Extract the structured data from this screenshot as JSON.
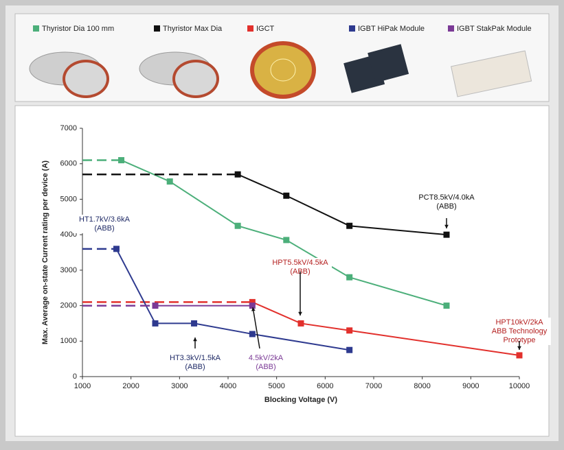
{
  "chart_data": {
    "type": "line",
    "x_label": "Blocking Voltage (V)",
    "y_label": "Max. Average on-state Current rating per device (A)",
    "xlim": [
      1000,
      10000
    ],
    "xticks": [
      1000,
      2000,
      3000,
      4000,
      5000,
      6000,
      7000,
      8000,
      9000,
      10000
    ],
    "ylim": [
      0,
      7000
    ],
    "yticks": [
      0,
      1000,
      2000,
      3000,
      4000,
      5000,
      6000,
      7000
    ],
    "grid": false,
    "legend": "top",
    "dashed_lead": true,
    "series": [
      {
        "name": "Thyristor Dia 100 mm",
        "color": "#4caf7a",
        "x": [
          1800,
          2800,
          4200,
          5200,
          6500,
          8500
        ],
        "values": [
          6100,
          5500,
          4250,
          3850,
          2800,
          2000
        ]
      },
      {
        "name": "Thyristor Max Dia",
        "color": "#111111",
        "x": [
          4200,
          5200,
          6500,
          8500
        ],
        "values": [
          5700,
          5100,
          4250,
          4000
        ]
      },
      {
        "name": "IGCT",
        "color": "#e2302c",
        "x": [
          4500,
          5500,
          6500,
          10000
        ],
        "values": [
          2100,
          1500,
          1300,
          600
        ]
      },
      {
        "name": "IGBT HiPak Module",
        "color": "#2e3a8f",
        "x": [
          1700,
          2500,
          3300,
          4500,
          6500
        ],
        "values": [
          3600,
          1500,
          1500,
          1200,
          750
        ]
      },
      {
        "name": "IGBT StakPak Module",
        "color": "#7b3a96",
        "x": [
          2500,
          4500
        ],
        "values": [
          2000,
          2000
        ]
      }
    ],
    "annotations": [
      {
        "lines": [
          "HT1.7kV/3.6kA",
          "(ABB)"
        ],
        "color": "#1f2a66"
      },
      {
        "lines": [
          "PCT8.5kV/4.0kA",
          "(ABB)"
        ],
        "color": "#111111"
      },
      {
        "lines": [
          "HPT5.5kV/4.5kA",
          "(ABB)"
        ],
        "color": "#b42020"
      },
      {
        "lines": [
          "HPT10kV/2kA",
          "ABB Technology",
          "Prototype"
        ],
        "color": "#b42020"
      },
      {
        "lines": [
          "HT3.3kV/1.5kA",
          "(ABB)"
        ],
        "color": "#1f2a66"
      },
      {
        "lines": [
          "4.5kV/2kA",
          "(ABB)"
        ],
        "color": "#7b3a96"
      }
    ]
  }
}
